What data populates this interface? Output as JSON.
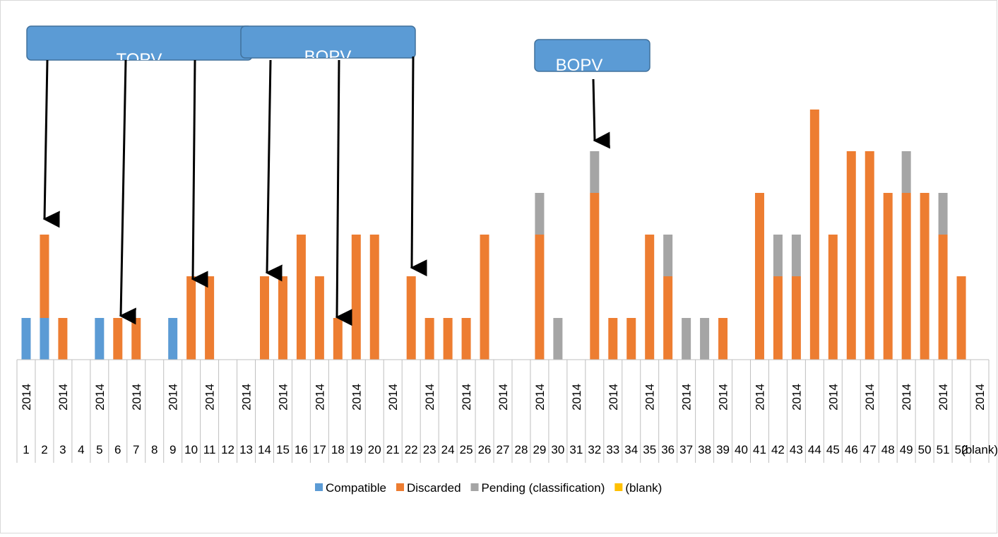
{
  "chart_data": {
    "type": "bar",
    "stacked": true,
    "categories": [
      "1",
      "2",
      "3",
      "4",
      "5",
      "6",
      "7",
      "8",
      "9",
      "10",
      "11",
      "12",
      "13",
      "14",
      "15",
      "16",
      "17",
      "18",
      "19",
      "20",
      "21",
      "22",
      "23",
      "24",
      "25",
      "26",
      "27",
      "28",
      "29",
      "30",
      "31",
      "32",
      "33",
      "34",
      "35",
      "36",
      "37",
      "38",
      "39",
      "40",
      "41",
      "42",
      "43",
      "44",
      "45",
      "46",
      "47",
      "48",
      "49",
      "50",
      "51",
      "52",
      "(blank)"
    ],
    "group_labels": [
      "2014",
      null,
      "2014",
      null,
      "2014",
      null,
      "2014",
      null,
      "2014",
      null,
      "2014",
      null,
      "2014",
      null,
      "2014",
      null,
      "2014",
      null,
      "2014",
      null,
      "2014",
      null,
      "2014",
      null,
      "2014",
      null,
      "2014",
      null,
      "2014",
      null,
      "2014",
      null,
      "2014",
      null,
      "2014",
      null,
      "2014",
      null,
      "2014",
      null,
      "2014",
      null,
      "2014",
      null,
      "2014",
      null,
      "2014",
      null,
      "2014",
      null,
      "2014",
      null,
      "2014",
      null,
      "(blank)"
    ],
    "series": [
      {
        "name": "Compatible",
        "color": "#5b9bd5",
        "values": [
          1,
          1,
          0,
          0,
          1,
          0,
          0,
          0,
          1,
          0,
          0,
          0,
          0,
          0,
          0,
          0,
          0,
          0,
          0,
          0,
          0,
          0,
          0,
          0,
          0,
          0,
          0,
          0,
          0,
          0,
          0,
          0,
          0,
          0,
          0,
          0,
          0,
          0,
          0,
          0,
          0,
          0,
          0,
          0,
          0,
          0,
          0,
          0,
          0,
          0,
          0,
          0,
          0
        ]
      },
      {
        "name": "Discarded",
        "color": "#ed7d31",
        "values": [
          0,
          2,
          1,
          0,
          0,
          1,
          1,
          0,
          0,
          2,
          2,
          0,
          0,
          2,
          2,
          3,
          2,
          1,
          3,
          3,
          0,
          2,
          1,
          1,
          1,
          3,
          0,
          0,
          3,
          0,
          0,
          4,
          1,
          1,
          3,
          2,
          0,
          0,
          1,
          0,
          4,
          2,
          2,
          6,
          3,
          5,
          5,
          4,
          4,
          4,
          3,
          2,
          0
        ]
      },
      {
        "name": "Pending (classification)",
        "color": "#a5a5a5",
        "values": [
          0,
          0,
          0,
          0,
          0,
          0,
          0,
          0,
          0,
          0,
          0,
          0,
          0,
          0,
          0,
          0,
          0,
          0,
          0,
          0,
          0,
          0,
          0,
          0,
          0,
          0,
          0,
          0,
          1,
          1,
          0,
          1,
          0,
          0,
          0,
          1,
          1,
          1,
          0,
          0,
          0,
          1,
          1,
          0,
          0,
          0,
          0,
          0,
          1,
          0,
          1,
          0,
          0
        ]
      },
      {
        "name": "(blank)",
        "color": "#ffc000",
        "values": [
          0,
          0,
          0,
          0,
          0,
          0,
          0,
          0,
          0,
          0,
          0,
          0,
          0,
          0,
          0,
          0,
          0,
          0,
          0,
          0,
          0,
          0,
          0,
          0,
          0,
          0,
          0,
          0,
          0,
          0,
          0,
          0,
          0,
          0,
          0,
          0,
          0,
          0,
          0,
          0,
          0,
          0,
          0,
          0,
          0,
          0,
          0,
          0,
          0,
          0,
          0,
          0,
          0
        ]
      }
    ],
    "ylim": [
      0,
      8
    ],
    "annotations": [
      {
        "text": "TOPV"
      },
      {
        "text": "BOPV"
      },
      {
        "text": "BOPV"
      }
    ],
    "legend": "bottom"
  }
}
